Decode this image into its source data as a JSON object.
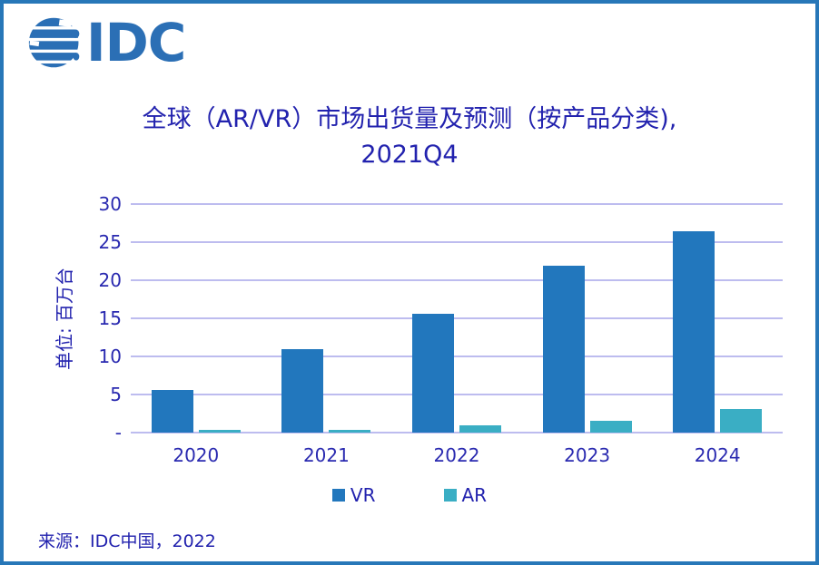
{
  "logo": {
    "text": "IDC",
    "icon": "idc-globe-icon",
    "color": "#2b6fb5"
  },
  "title": {
    "line1": "全球（AR/VR）市场出货量及预测（按产品分类),",
    "line2": "2021Q4"
  },
  "source": {
    "label": "来源：IDC中国，2022"
  },
  "colors": {
    "border": "#2777b8",
    "gridline": "#bdbcef",
    "text_blue": "#2222ae",
    "vr_bar": "#2277bd",
    "ar_bar": "#3aaec4"
  },
  "chart_data": {
    "type": "bar",
    "title": "全球（AR/VR）市场出货量及预测（按产品分类), 2021Q4",
    "xlabel": "",
    "ylabel": "单位: 百万台",
    "ylim": [
      0,
      30
    ],
    "grid": "horizontal",
    "legend_position": "bottom-center",
    "categories": [
      "2020",
      "2021",
      "2022",
      "2023",
      "2024"
    ],
    "series": [
      {
        "name": "VR",
        "color": "#2277bd",
        "values": [
          5.6,
          11.0,
          15.6,
          21.9,
          26.4
        ]
      },
      {
        "name": "AR",
        "color": "#3aaec4",
        "values": [
          0.3,
          0.4,
          0.9,
          1.6,
          3.1
        ]
      }
    ],
    "yticks": [
      {
        "label": "30",
        "value": 30
      },
      {
        "label": "25",
        "value": 25
      },
      {
        "label": "20",
        "value": 20
      },
      {
        "label": "15",
        "value": 15
      },
      {
        "label": "10",
        "value": 10
      },
      {
        "label": "5",
        "value": 5
      },
      {
        "label": "-",
        "value": 0
      }
    ]
  }
}
